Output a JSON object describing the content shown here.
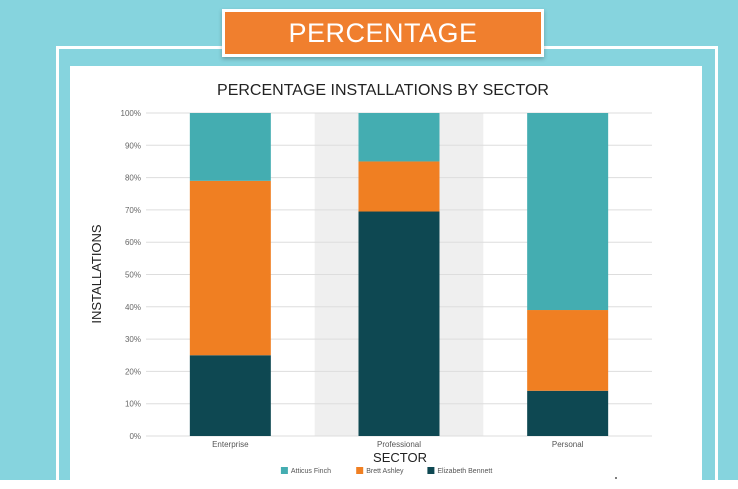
{
  "banner": {
    "label": "PERCENTAGE"
  },
  "colors": {
    "frame_teal": "#86d4de",
    "banner_orange": "#f07f2e"
  },
  "chart_data": {
    "type": "bar",
    "stacked": true,
    "title": "PERCENTAGE INSTALLATIONS BY SECTOR",
    "xlabel": "SECTOR",
    "ylabel": "INSTALLATIONS",
    "categories": [
      "Enterprise",
      "Professional",
      "Personal"
    ],
    "yticks": [
      "0%",
      "10%",
      "20%",
      "30%",
      "40%",
      "50%",
      "60%",
      "70%",
      "80%",
      "90%",
      "100%"
    ],
    "ylim": [
      0,
      100
    ],
    "grid": true,
    "legend_position": "bottom",
    "highlighted_category": "Professional",
    "series": [
      {
        "name": "Elizabeth Bennett",
        "color": "#0e4852",
        "values": [
          25,
          69.5,
          14
        ]
      },
      {
        "name": "Brett Ashley",
        "color": "#f07f22",
        "values": [
          54,
          15.5,
          25
        ]
      },
      {
        "name": "Atticus Finch",
        "color": "#44adb1",
        "values": [
          21,
          15,
          61
        ]
      }
    ],
    "legend_order": [
      "Atticus Finch",
      "Brett Ashley",
      "Elizabeth Bennett"
    ]
  }
}
